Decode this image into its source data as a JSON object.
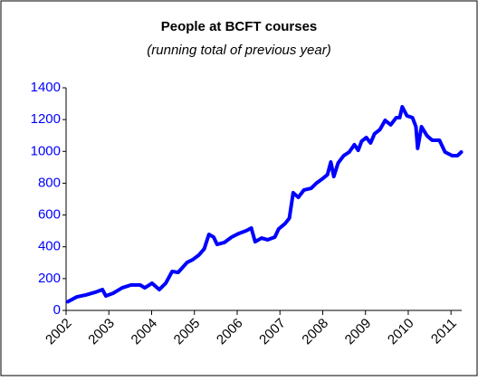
{
  "chart_data": {
    "type": "line",
    "title": "People at BCFT courses",
    "subtitle": "(running total of previous year)",
    "color": "#0000ff",
    "xlim": [
      2002,
      2011.25
    ],
    "xticks": [
      2002,
      2003,
      2004,
      2005,
      2006,
      2007,
      2008,
      2009,
      2010,
      2011
    ],
    "ylim": [
      0,
      1400
    ],
    "yticks": [
      0,
      200,
      400,
      600,
      800,
      1000,
      1200,
      1400
    ],
    "grid": false,
    "x": [
      2002.04,
      2002.25,
      2002.46,
      2002.68,
      2002.85,
      2002.93,
      2003.1,
      2003.31,
      2003.52,
      2003.73,
      2003.84,
      2004.01,
      2004.18,
      2004.33,
      2004.48,
      2004.62,
      2004.83,
      2004.96,
      2005.1,
      2005.23,
      2005.34,
      2005.45,
      2005.53,
      2005.7,
      2005.87,
      2006.04,
      2006.21,
      2006.33,
      2006.42,
      2006.57,
      2006.71,
      2006.88,
      2006.97,
      2007.12,
      2007.22,
      2007.31,
      2007.43,
      2007.56,
      2007.73,
      2007.86,
      2007.98,
      2008.11,
      2008.19,
      2008.26,
      2008.36,
      2008.49,
      2008.62,
      2008.74,
      2008.83,
      2008.91,
      2009.02,
      2009.12,
      2009.21,
      2009.34,
      2009.46,
      2009.59,
      2009.72,
      2009.8,
      2009.86,
      2009.97,
      2010.1,
      2010.18,
      2010.22,
      2010.31,
      2010.44,
      2010.56,
      2010.73,
      2010.86,
      2011.03,
      2011.15,
      2011.24
    ],
    "values": [
      55,
      85,
      97,
      114,
      131,
      91,
      108,
      142,
      160,
      160,
      142,
      171,
      131,
      171,
      245,
      239,
      302,
      319,
      347,
      387,
      478,
      461,
      415,
      427,
      461,
      484,
      501,
      518,
      432,
      455,
      444,
      461,
      512,
      546,
      580,
      740,
      711,
      757,
      768,
      802,
      825,
      853,
      933,
      842,
      927,
      973,
      996,
      1042,
      1007,
      1064,
      1087,
      1053,
      1110,
      1138,
      1195,
      1167,
      1212,
      1212,
      1280,
      1224,
      1212,
      1155,
      1019,
      1155,
      1098,
      1070,
      1070,
      996,
      973,
      973,
      996
    ]
  }
}
